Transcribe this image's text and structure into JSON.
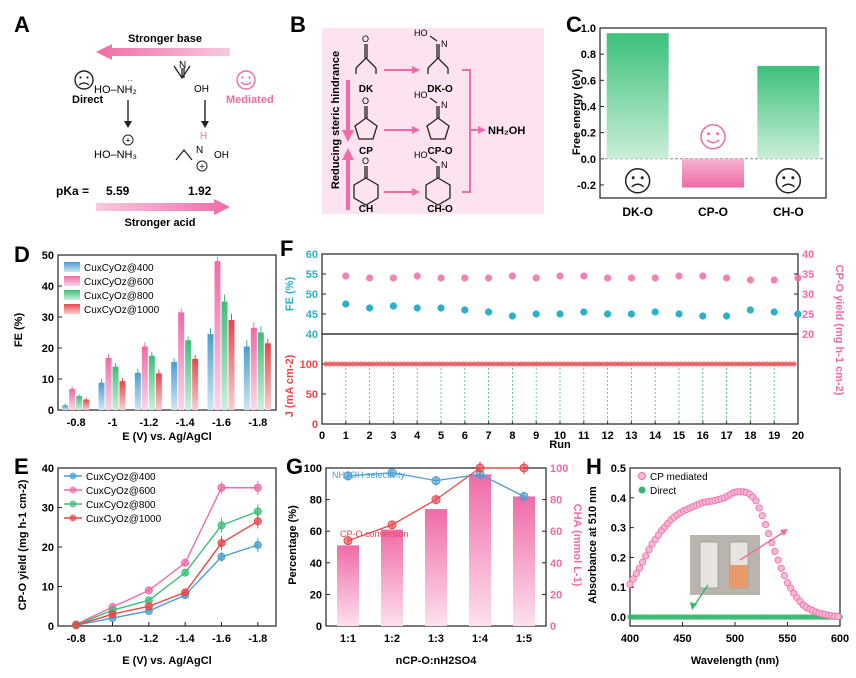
{
  "panel_letters": {
    "A": "A",
    "B": "B",
    "C": "C",
    "D": "D",
    "E": "E",
    "F": "F",
    "G": "G",
    "H": "H"
  },
  "colors": {
    "pink": "#f06ba8",
    "pink_light": "#f7b8d6",
    "green": "#3cc07a",
    "blue": "#4a9fd0",
    "red": "#e8474a",
    "teal": "#2bb0c9",
    "green_dot": "#35b86b",
    "bg_pink": "#fde3ef"
  },
  "panelA": {
    "stronger_base": "Stronger base",
    "stronger_acid": "Stronger acid",
    "direct": "Direct",
    "mediated": "Mediated",
    "direct_reactant": "HO–NH₂",
    "direct_product": "HO–NH₃",
    "mediated_reactant_atoms": [
      "N",
      "OH"
    ],
    "mediated_product_atoms": [
      "H",
      "N",
      "OH"
    ],
    "pka_label": "pKa =",
    "pka_direct": "5.59",
    "pka_mediated": "1.92",
    "face_direct": "sad-face-icon",
    "face_mediated": "smile-face-icon"
  },
  "panelB": {
    "vertical_label": "Reducing steric hindrance",
    "ketones": [
      "DK",
      "CP",
      "CH"
    ],
    "oximes": [
      "DK-O",
      "CP-O",
      "CH-O"
    ],
    "oxime_group": "HO",
    "ketone_atom": "O",
    "oxime_atom": "N",
    "product": "NH₂OH"
  },
  "panelC": {
    "chart_data": {
      "type": "bar",
      "categories": [
        "DK-O",
        "CP-O",
        "CH-O"
      ],
      "values": [
        0.96,
        -0.22,
        0.71
      ],
      "ylabel": "Free energy (eV)",
      "ylim": [
        -0.3,
        1.0
      ],
      "yticks": [
        -0.2,
        0.0,
        0.2,
        0.4,
        0.6,
        0.8,
        1.0
      ],
      "faces": [
        "sad",
        "happy",
        "sad"
      ]
    }
  },
  "panelD": {
    "chart_data": {
      "type": "bar",
      "categories": [
        "-0.8",
        "-1",
        "-1.2",
        "-1.4",
        "-1.6",
        "-1.8"
      ],
      "xlabel": "E (V) vs. Ag/AgCl",
      "ylabel": "FE (%)",
      "ylim": [
        0,
        50
      ],
      "yticks": [
        0,
        10,
        20,
        30,
        40,
        50
      ],
      "series": [
        {
          "name": "CuxCyOz@400",
          "values": [
            1.5,
            8.8,
            12.0,
            15.5,
            24.5,
            20.5
          ],
          "errors": [
            0.6,
            1.2,
            1.3,
            1.2,
            1.8,
            2.0
          ]
        },
        {
          "name": "CuxCyOz@600",
          "values": [
            6.8,
            16.8,
            20.5,
            31.5,
            48.0,
            26.5
          ],
          "errors": [
            0.8,
            1.3,
            1.3,
            1.2,
            1.3,
            1.8
          ]
        },
        {
          "name": "CuxCyOz@800",
          "values": [
            4.5,
            14.0,
            17.5,
            22.5,
            35.0,
            25.0
          ],
          "errors": [
            0.6,
            1.2,
            1.3,
            1.2,
            2.2,
            2.0
          ]
        },
        {
          "name": "CuxCyOz@1000",
          "values": [
            3.4,
            9.3,
            11.8,
            16.5,
            29.0,
            21.5
          ],
          "errors": [
            0.6,
            1.0,
            1.2,
            1.2,
            2.0,
            1.5
          ]
        }
      ],
      "legend": "top-left"
    }
  },
  "panelE": {
    "chart_data": {
      "type": "line",
      "x": [
        -0.8,
        -1.0,
        -1.2,
        -1.4,
        -1.6,
        -1.8
      ],
      "xticklabels": [
        "-0.8",
        "-1.0",
        "-1.2",
        "-1.4",
        "-1.6",
        "-1.8"
      ],
      "xlabel": "E (V) vs. Ag/AgCl",
      "ylabel": "CP-O yield (mg h-1 cm-2)",
      "ylim": [
        0,
        40
      ],
      "yticks": [
        0,
        10,
        20,
        30,
        40
      ],
      "series": [
        {
          "name": "CuxCyOz@400",
          "values": [
            0.2,
            2.0,
            3.8,
            7.8,
            17.5,
            20.5
          ],
          "errors": [
            0.2,
            0.4,
            0.5,
            0.6,
            1.2,
            1.8
          ]
        },
        {
          "name": "CuxCyOz@600",
          "values": [
            0.4,
            4.8,
            9.0,
            16.0,
            35.0,
            35.0
          ],
          "errors": [
            0.2,
            0.4,
            0.5,
            0.6,
            1.5,
            1.8
          ]
        },
        {
          "name": "CuxCyOz@800",
          "values": [
            0.3,
            4.0,
            6.5,
            13.5,
            25.5,
            29.0
          ],
          "errors": [
            0.2,
            0.4,
            0.5,
            0.6,
            1.8,
            1.8
          ]
        },
        {
          "name": "CuxCyOz@1000",
          "values": [
            0.2,
            3.0,
            5.0,
            8.5,
            21.0,
            26.5
          ],
          "errors": [
            0.2,
            0.4,
            0.5,
            0.6,
            1.8,
            1.8
          ]
        }
      ],
      "legend": "top-left"
    }
  },
  "panelF": {
    "chart_data": {
      "type": "scatter",
      "xlabel": "Run",
      "x": [
        1,
        2,
        3,
        4,
        5,
        6,
        7,
        8,
        9,
        10,
        11,
        12,
        13,
        14,
        15,
        16,
        17,
        18,
        19,
        20
      ],
      "xlim": [
        0,
        20
      ],
      "top_left_ylabel": "FE (%)",
      "top_left_ylim": [
        40,
        60
      ],
      "top_left_yticks": [
        40,
        45,
        50,
        55,
        60
      ],
      "top_right_ylabel": "CP-O yield (mg h-1 cm-2)",
      "top_right_ylim": [
        20,
        40
      ],
      "top_right_yticks": [
        20,
        25,
        30,
        35,
        40
      ],
      "bottom_ylabel": "J (mA cm-2)",
      "bottom_ylim": [
        0,
        150
      ],
      "bottom_yticks": [
        0,
        50,
        100
      ],
      "fe_values": [
        47.5,
        46.5,
        47.0,
        46.5,
        46.5,
        46.0,
        45.5,
        44.5,
        45.0,
        45.0,
        45.5,
        45.0,
        45.0,
        45.5,
        45.0,
        44.5,
        44.5,
        46.0,
        45.5,
        45.0
      ],
      "yield_values": [
        34.5,
        34.0,
        34.0,
        34.5,
        34.0,
        34.0,
        34.0,
        34.5,
        34.0,
        34.5,
        34.5,
        34.0,
        34.0,
        34.0,
        34.5,
        34.5,
        34.0,
        33.5,
        33.5,
        34.0
      ],
      "current_value": 100
    }
  },
  "panelG": {
    "chart_data": {
      "type": "bar",
      "categories": [
        "1:1",
        "1:2",
        "1:3",
        "1:4",
        "1:5"
      ],
      "xlabel": "nCP-O:nH2SO4",
      "ylabel_left": "Percentage (%)",
      "ylabel_right": "CHA (mmol L-1)",
      "ylim_left": [
        0,
        100
      ],
      "ylim_right": [
        0,
        100
      ],
      "yticks_left": [
        0,
        20,
        40,
        60,
        80,
        100
      ],
      "yticks_right": [
        0,
        20,
        40,
        60,
        80,
        100
      ],
      "bar_values": [
        51,
        61,
        74,
        96,
        82
      ],
      "selectivity": {
        "name": "NH2OH selectivity",
        "values": [
          95,
          97,
          92,
          96,
          82
        ],
        "errors": [
          3,
          2,
          3,
          3,
          3
        ]
      },
      "conversion": {
        "name": "CP-O conversion",
        "values": [
          54,
          64,
          80,
          100,
          100
        ],
        "errors": [
          2,
          2,
          3,
          4,
          4
        ]
      }
    }
  },
  "panelH": {
    "chart_data": {
      "type": "scatter",
      "xlabel": "Wavelength (nm)",
      "ylabel": "Absorbance at 510 nm",
      "xlim": [
        400,
        600
      ],
      "ylim": [
        -0.03,
        0.5
      ],
      "xticks": [
        400,
        450,
        500,
        550,
        600
      ],
      "yticks": [
        0.0,
        0.1,
        0.2,
        0.3,
        0.4,
        0.5
      ],
      "series": [
        {
          "name": "CP mediated",
          "points": [
            [
              400,
              0.11
            ],
            [
              410,
              0.17
            ],
            [
              420,
              0.24
            ],
            [
              430,
              0.29
            ],
            [
              440,
              0.33
            ],
            [
              450,
              0.355
            ],
            [
              460,
              0.37
            ],
            [
              470,
              0.385
            ],
            [
              480,
              0.39
            ],
            [
              490,
              0.4
            ],
            [
              500,
              0.42
            ],
            [
              505,
              0.42
            ],
            [
              510,
              0.42
            ],
            [
              515,
              0.41
            ],
            [
              520,
              0.39
            ],
            [
              525,
              0.35
            ],
            [
              530,
              0.3
            ],
            [
              535,
              0.25
            ],
            [
              540,
              0.2
            ],
            [
              545,
              0.155
            ],
            [
              550,
              0.115
            ],
            [
              555,
              0.085
            ],
            [
              560,
              0.06
            ],
            [
              565,
              0.04
            ],
            [
              570,
              0.028
            ],
            [
              575,
              0.02
            ],
            [
              580,
              0.013
            ],
            [
              585,
              0.009
            ],
            [
              590,
              0.005
            ],
            [
              595,
              0.003
            ],
            [
              600,
              0.001
            ]
          ]
        },
        {
          "name": "Direct",
          "points": [
            [
              400,
              0.0
            ],
            [
              600,
              0.0
            ]
          ]
        }
      ],
      "legend": "top-left"
    }
  }
}
